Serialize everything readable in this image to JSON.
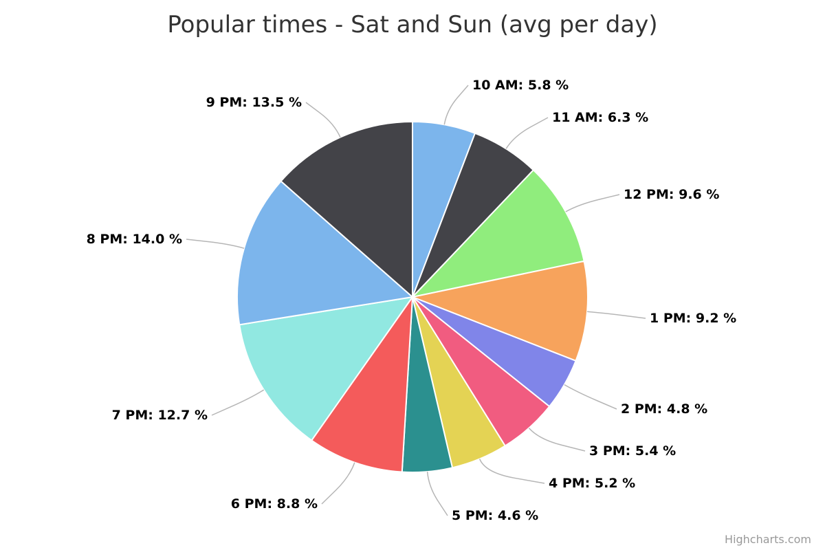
{
  "chart_data": {
    "type": "pie",
    "title": "Popular times - Sat and Sun (avg per day)",
    "value_suffix": " %",
    "slices": [
      {
        "name": "10 AM",
        "value": 5.8,
        "color": "#7cb5ec"
      },
      {
        "name": "11 AM",
        "value": 6.3,
        "color": "#434348"
      },
      {
        "name": "12 PM",
        "value": 9.6,
        "color": "#90ed7d"
      },
      {
        "name": "1 PM",
        "value": 9.2,
        "color": "#f7a35c"
      },
      {
        "name": "2 PM",
        "value": 4.8,
        "color": "#8085e9"
      },
      {
        "name": "3 PM",
        "value": 5.4,
        "color": "#f15c80"
      },
      {
        "name": "4 PM",
        "value": 5.2,
        "color": "#e4d354"
      },
      {
        "name": "5 PM",
        "value": 4.6,
        "color": "#2b908f"
      },
      {
        "name": "6 PM",
        "value": 8.8,
        "color": "#f45b5b"
      },
      {
        "name": "7 PM",
        "value": 12.7,
        "color": "#91e8e1"
      },
      {
        "name": "8 PM",
        "value": 14.0,
        "color": "#7cb5ec"
      },
      {
        "name": "9 PM",
        "value": 13.5,
        "color": "#434348"
      }
    ],
    "legend": false
  },
  "credits": "Highcharts.com"
}
